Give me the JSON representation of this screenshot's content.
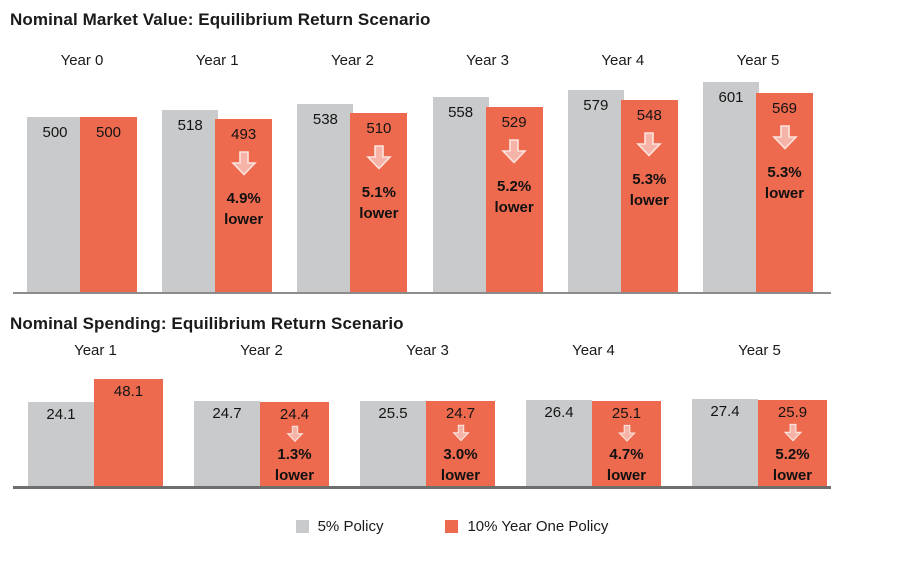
{
  "legend": {
    "items": [
      {
        "label": "5% Policy",
        "swatch_color": "#C9CACB"
      },
      {
        "label": "10% Year One Policy",
        "swatch_color": "#ED6A4F"
      }
    ]
  },
  "colors": {
    "gray_bar": "#C9CACB",
    "orange_bar": "#ED6A4F",
    "arrow_fill": "#F6B3A8",
    "arrow_outline": "#FBE4DD",
    "axis_top": "#8C8C8C",
    "axis_bottom": "#6E6E6E",
    "text": "#1A1A1A"
  },
  "chart_data": [
    {
      "type": "bar",
      "title": "Nominal Market Value: Equilibrium Return Scenario",
      "categories": [
        "Year 0",
        "Year 1",
        "Year 2",
        "Year 3",
        "Year 4",
        "Year 5"
      ],
      "series": [
        {
          "name": "5% Policy",
          "values": [
            500,
            518,
            538,
            558,
            579,
            601
          ]
        },
        {
          "name": "10% Year One Policy",
          "values": [
            500,
            493,
            510,
            529,
            548,
            569
          ]
        }
      ],
      "annotations": [
        null,
        {
          "pct": "4.9%",
          "word": "lower"
        },
        {
          "pct": "5.1%",
          "word": "lower"
        },
        {
          "pct": "5.2%",
          "word": "lower"
        },
        {
          "pct": "5.3%",
          "word": "lower"
        },
        {
          "pct": "5.3%",
          "word": "lower"
        }
      ],
      "ylim": [
        -20,
        620
      ],
      "grid": false,
      "value_labels": "inside-top",
      "legend_position": "bottom"
    },
    {
      "type": "bar",
      "title": "Nominal Spending: Equilibrium Return Scenario",
      "categories": [
        "Year 1",
        "Year 2",
        "Year 3",
        "Year 4",
        "Year 5"
      ],
      "series": [
        {
          "name": "5% Policy",
          "values": [
            24.1,
            24.7,
            25.5,
            26.4,
            27.4
          ]
        },
        {
          "name": "10% Year One Policy",
          "values": [
            48.1,
            24.4,
            24.7,
            25.1,
            25.9
          ]
        }
      ],
      "annotations": [
        null,
        {
          "pct": "1.3%",
          "word": "lower"
        },
        {
          "pct": "3.0%",
          "word": "lower"
        },
        {
          "pct": "4.7%",
          "word": "lower"
        },
        {
          "pct": "5.2%",
          "word": "lower"
        }
      ],
      "ylim": [
        -64,
        66
      ],
      "grid": false,
      "value_labels": "inside-top",
      "legend_position": "bottom"
    }
  ]
}
